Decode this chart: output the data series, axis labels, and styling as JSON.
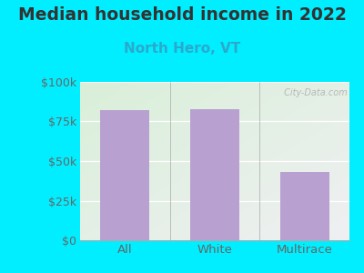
{
  "title": "Median household income in 2022",
  "subtitle": "North Hero, VT",
  "categories": [
    "All",
    "White",
    "Multirace"
  ],
  "values": [
    82000,
    83000,
    43000
  ],
  "bar_color": "#b8a0d0",
  "title_fontsize": 13.5,
  "subtitle_fontsize": 11,
  "subtitle_color": "#29aacc",
  "tick_label_color": "#666666",
  "background_color": "#00eeff",
  "plot_bg_top_left": "#d8efd8",
  "plot_bg_bottom_right": "#f0f0f0",
  "ylim": [
    0,
    100000
  ],
  "yticks": [
    0,
    25000,
    50000,
    75000,
    100000
  ],
  "ytick_labels": [
    "$0",
    "$25k",
    "$50k",
    "$75k",
    "$100k"
  ],
  "watermark": " City-Data.com"
}
